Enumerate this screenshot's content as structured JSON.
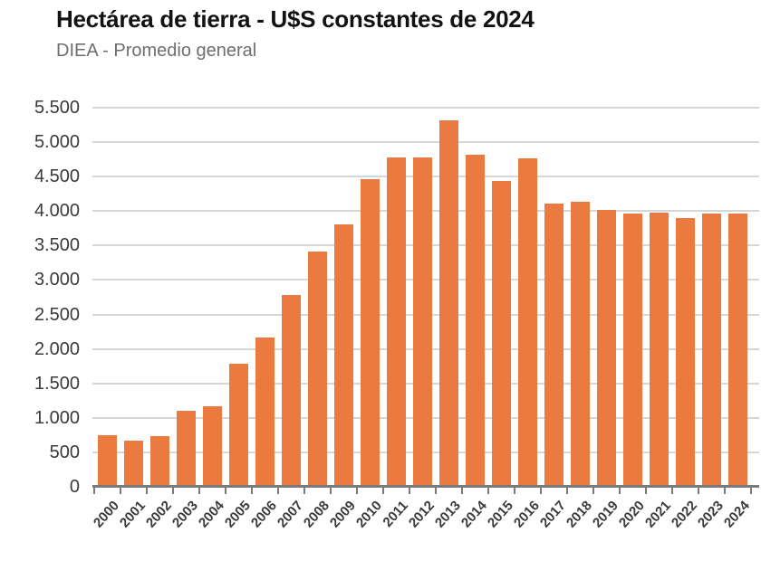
{
  "header": {
    "title": "Hectárea de tierra - U$S constantes de 2024",
    "subtitle": "DIEA - Promedio general"
  },
  "chart_data": {
    "type": "bar",
    "title": "Hectárea de tierra - U$S constantes de 2024",
    "subtitle": "DIEA - Promedio general",
    "categories": [
      "2000",
      "2001",
      "2002",
      "2003",
      "2004",
      "2005",
      "2006",
      "2007",
      "2008",
      "2009",
      "2010",
      "2011",
      "2012",
      "2013",
      "2014",
      "2015",
      "2016",
      "2017",
      "2018",
      "2019",
      "2020",
      "2021",
      "2022",
      "2023",
      "2024"
    ],
    "values": [
      730,
      660,
      720,
      1090,
      1155,
      1775,
      2150,
      2770,
      3400,
      3790,
      4450,
      4770,
      4760,
      5300,
      4800,
      4425,
      4755,
      4100,
      4120,
      4000,
      3950,
      3970,
      3890,
      3955,
      3950
    ],
    "xlabel": "",
    "ylabel": "",
    "ylim": [
      0,
      5500
    ],
    "ytick_step": 500,
    "ytick_labels": [
      "0",
      "500",
      "1.000",
      "1.500",
      "2.000",
      "2.500",
      "3.000",
      "3.500",
      "4.000",
      "4.500",
      "5.000",
      "5.500"
    ],
    "grid": "horizontal",
    "legend": "none",
    "x_labels_rotation_deg": -48
  },
  "style": {
    "bar_color": "#EB7A40",
    "gridline_color": "#D6D6D6",
    "axis_color": "#7A7A7A",
    "title_color": "#121212",
    "subtitle_color": "#6E6E6E",
    "tick_label_color": "#3A3A3A",
    "background": "#FFFFFF"
  }
}
